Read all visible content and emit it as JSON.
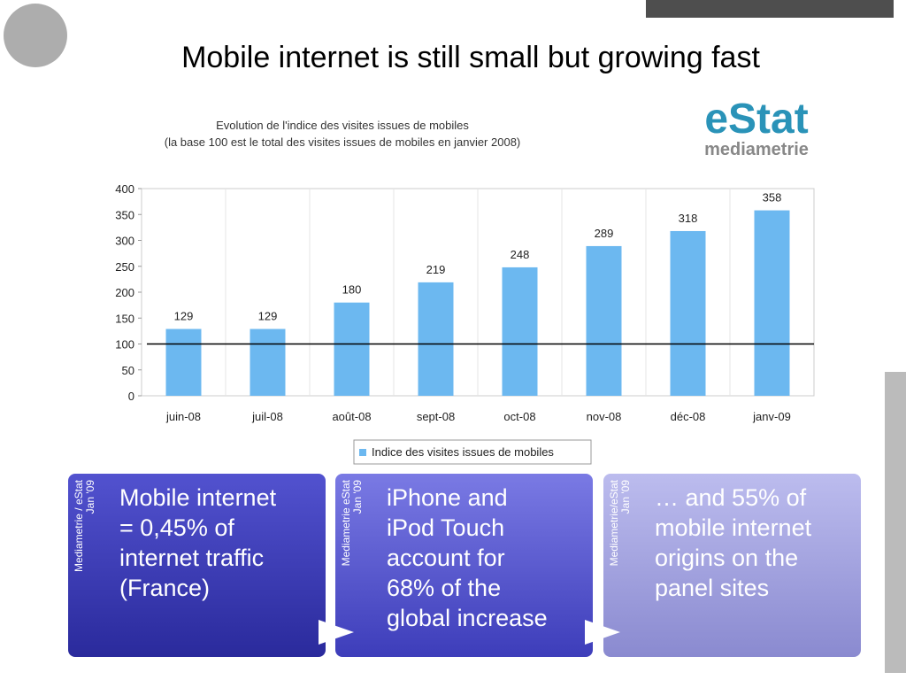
{
  "slide": {
    "title": "Mobile internet is still small but growing fast",
    "logo": [
      "eStat",
      "mediametrie"
    ],
    "boxes": [
      {
        "source": [
          "Mediametrie / eStat",
          "Jan '09"
        ],
        "text": [
          "Mobile internet",
          "= 0,45% of",
          "internet traffic",
          "(France)"
        ]
      },
      {
        "source": [
          "Mediametrie eStat",
          "Jan '09"
        ],
        "text": [
          "iPhone and",
          "iPod Touch",
          "account for",
          "68% of the",
          "global increase"
        ]
      },
      {
        "source": [
          "Mediametrie/eStat",
          "Jan '09"
        ],
        "text": [
          "… and 55% of",
          "mobile internet",
          "origins on the",
          "panel sites"
        ]
      }
    ]
  },
  "chart_data": {
    "type": "bar",
    "title": [
      "Evolution de l'indice des visites issues de mobiles",
      "(la base 100 est le total des visites issues de mobiles en janvier 2008)"
    ],
    "categories": [
      "juin-08",
      "juil-08",
      "août-08",
      "sept-08",
      "oct-08",
      "nov-08",
      "déc-08",
      "janv-09"
    ],
    "series": [
      {
        "name": "Indice des visites issues de mobiles",
        "color": "#6cb8f0",
        "values": [
          129,
          129,
          180,
          219,
          248,
          289,
          318,
          358
        ]
      }
    ],
    "reference_line": 100,
    "ylim": [
      0,
      400
    ],
    "yticks": [
      0,
      50,
      100,
      150,
      200,
      250,
      300,
      350,
      400
    ],
    "legend": "bottom"
  }
}
